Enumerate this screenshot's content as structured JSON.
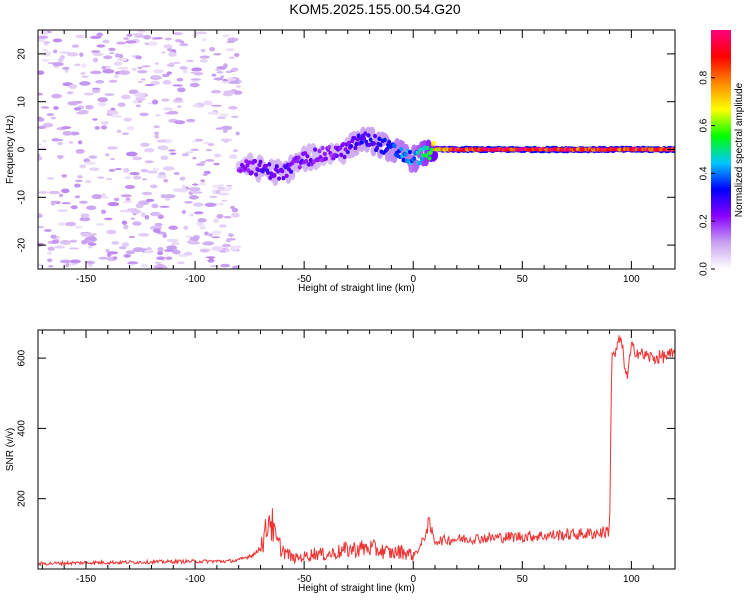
{
  "title": "KOM5.2025.155.00.54.G20",
  "chart_data": [
    {
      "type": "heatmap",
      "title": "KOM5.2025.155.00.54.G20",
      "xlabel": "Height of straight line (km)",
      "ylabel": "Frequency (Hz)",
      "xlim": [
        -172,
        120
      ],
      "ylim": [
        -25,
        25
      ],
      "x_ticks": [
        -150,
        -100,
        -50,
        0,
        50,
        100
      ],
      "y_ticks": [
        -20,
        -10,
        0,
        10,
        20
      ],
      "grid": false,
      "colorbar": {
        "label": "Normalized spectral amplitude",
        "range": [
          0,
          1
        ],
        "ticks": [
          0.0,
          0.2,
          0.4,
          0.6,
          0.8
        ],
        "colors": [
          "#ffffff",
          "#c8a0f0",
          "#8800ff",
          "#0000ff",
          "#00c8ff",
          "#00ff00",
          "#ffff00",
          "#ff8800",
          "#ff0000",
          "#ff0080"
        ]
      },
      "track": {
        "x": [
          -80,
          -70,
          -60,
          -50,
          -40,
          -30,
          -25,
          -20,
          -10,
          -5,
          0,
          5,
          10,
          20,
          40,
          60,
          80,
          100,
          120
        ],
        "y": [
          -3,
          -4,
          -5,
          -2,
          -1,
          0,
          2,
          2,
          0,
          -1,
          -2,
          -1,
          0,
          0,
          0,
          0,
          0,
          0,
          0
        ],
        "amplitude": [
          0.2,
          0.25,
          0.25,
          0.25,
          0.2,
          0.25,
          0.3,
          0.3,
          0.35,
          0.4,
          0.4,
          0.5,
          0.7,
          0.9,
          0.95,
          0.95,
          0.85,
          0.9,
          0.95
        ]
      }
    },
    {
      "type": "line",
      "xlabel": "Height of straight line (km)",
      "ylabel": "SNR (v/v)",
      "xlim": [
        -172,
        120
      ],
      "ylim": [
        0,
        680
      ],
      "x_ticks": [
        -150,
        -100,
        -50,
        0,
        50,
        100
      ],
      "y_ticks": [
        200,
        400,
        600
      ],
      "color": "#ee3333",
      "x": [
        -172,
        -150,
        -120,
        -100,
        -85,
        -80,
        -72,
        -68,
        -66,
        -63,
        -60,
        -55,
        -50,
        -45,
        -40,
        -30,
        -20,
        -10,
        -5,
        0,
        3,
        5,
        7,
        10,
        20,
        40,
        60,
        80,
        88,
        90,
        91,
        92,
        95,
        98,
        100,
        105,
        110,
        120
      ],
      "y": [
        15,
        18,
        20,
        22,
        22,
        25,
        45,
        90,
        160,
        80,
        55,
        30,
        35,
        45,
        40,
        55,
        60,
        45,
        50,
        40,
        60,
        90,
        130,
        80,
        85,
        90,
        95,
        100,
        105,
        110,
        620,
        600,
        660,
        540,
        630,
        610,
        600,
        610
      ]
    }
  ]
}
